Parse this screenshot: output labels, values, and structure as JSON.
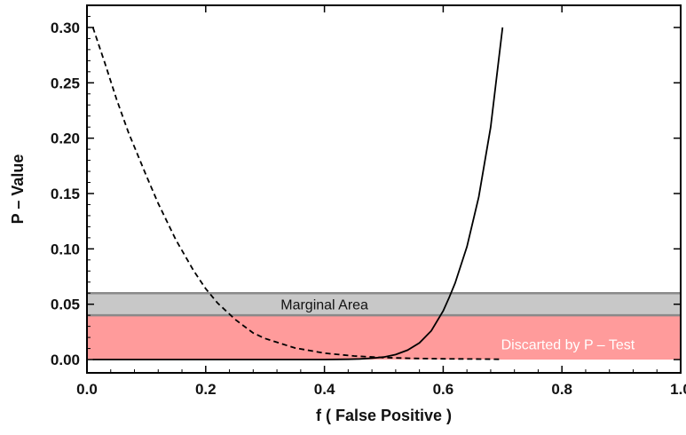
{
  "chart_data": {
    "type": "line",
    "title": "",
    "xlabel": "f ( False  Positive )",
    "ylabel": "P – Value",
    "xlim": [
      0.0,
      1.0
    ],
    "ylim": [
      -0.012,
      0.32
    ],
    "x_ticks": [
      0.0,
      0.2,
      0.4,
      0.6,
      0.8,
      1.0
    ],
    "x_tick_labels": [
      "0.0",
      "0.2",
      "0.4",
      "0.6",
      "0.8",
      "1.0"
    ],
    "y_ticks": [
      0.0,
      0.05,
      0.1,
      0.15,
      0.2,
      0.25,
      0.3
    ],
    "y_tick_labels": [
      "0.00",
      "0.05",
      "0.10",
      "0.15",
      "0.20",
      "0.25",
      "0.30"
    ],
    "grid": false,
    "legend": "none",
    "bands": [
      {
        "label": "Marginal  Area",
        "y0": 0.04,
        "y1": 0.06,
        "x0": 0.0,
        "x1": 1.0,
        "color": "#c8c8c8",
        "text_color": "#111111",
        "label_x": 0.4,
        "label_y": 0.05
      },
      {
        "label": "Discarted  by  P – Test",
        "y0": 0.0,
        "y1": 0.04,
        "x0": 0.0,
        "x1": 1.0,
        "color": "#ff9b9b",
        "text_color": "#ffffff",
        "label_x": 0.81,
        "label_y": 0.014
      }
    ],
    "series": [
      {
        "style": "solid",
        "color": "#000000",
        "x": [
          0.01,
          0.4,
          0.44,
          0.46,
          0.48,
          0.5,
          0.52,
          0.54,
          0.56,
          0.58,
          0.6,
          0.61,
          0.62,
          0.64,
          0.66,
          0.68,
          0.7
        ],
        "y": [
          0.0,
          0.0,
          0.0003,
          0.0006,
          0.0012,
          0.0023,
          0.0045,
          0.0085,
          0.015,
          0.026,
          0.044,
          0.056,
          0.069,
          0.102,
          0.147,
          0.21,
          0.3
        ]
      },
      {
        "style": "dashed",
        "color": "#000000",
        "x": [
          0.01,
          0.03,
          0.05,
          0.07,
          0.1,
          0.12,
          0.15,
          0.18,
          0.2,
          0.22,
          0.25,
          0.28,
          0.3,
          0.35,
          0.4,
          0.45,
          0.5,
          0.55,
          0.6,
          0.65,
          0.7
        ],
        "y": [
          0.3,
          0.268,
          0.235,
          0.205,
          0.166,
          0.141,
          0.108,
          0.08,
          0.064,
          0.051,
          0.036,
          0.024,
          0.019,
          0.0105,
          0.0058,
          0.0032,
          0.0018,
          0.0011,
          0.0007,
          0.0005,
          0.0003
        ]
      }
    ]
  }
}
